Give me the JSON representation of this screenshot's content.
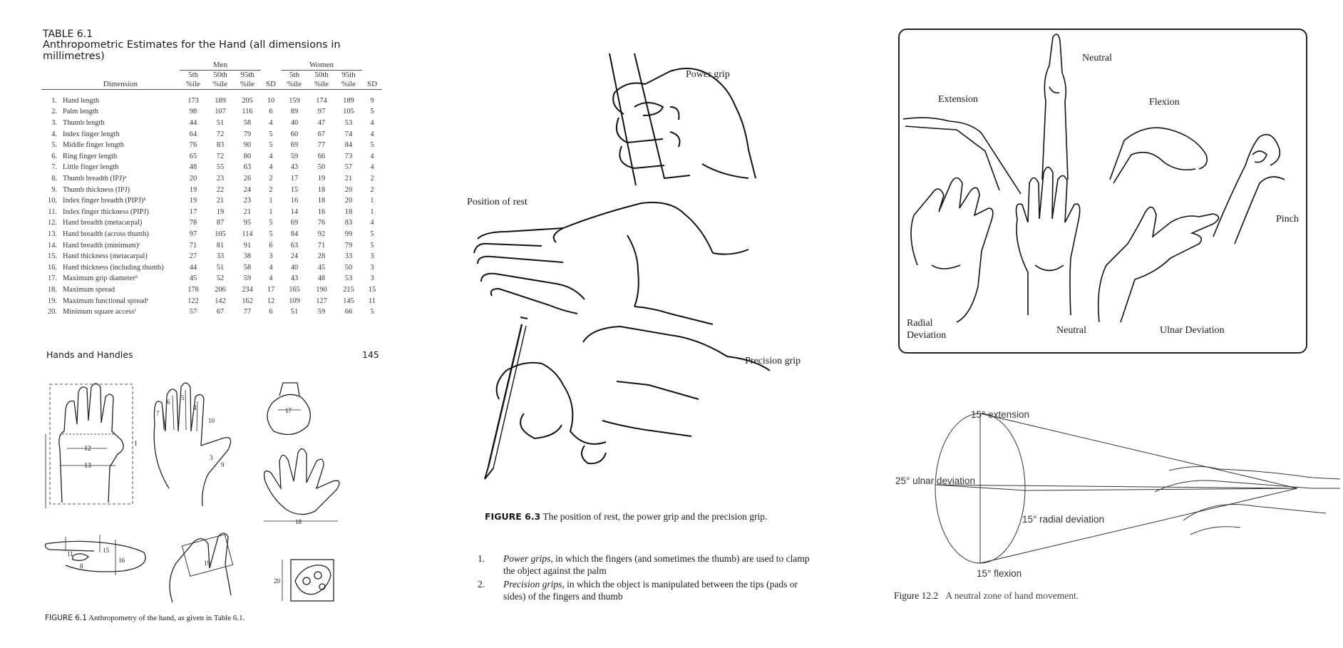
{
  "left_page": {
    "table_label": "TABLE 6.1",
    "table_title": "Anthropometric Estimates for the Hand (all dimensions in millimetres)",
    "group_men": "Men",
    "group_women": "Women",
    "col_dimension": "Dimension",
    "col_headers": [
      {
        "top": "5th",
        "bottom": "%ile"
      },
      {
        "top": "50th",
        "bottom": "%ile"
      },
      {
        "top": "95th",
        "bottom": "%ile"
      },
      {
        "top": "",
        "bottom": "SD"
      },
      {
        "top": "5th",
        "bottom": "%ile"
      },
      {
        "top": "50th",
        "bottom": "%ile"
      },
      {
        "top": "95th",
        "bottom": "%ile"
      },
      {
        "top": "",
        "bottom": "SD"
      }
    ],
    "rows": [
      {
        "idx": "1.",
        "dim": "Hand length",
        "vals": [
          "173",
          "189",
          "205",
          "10",
          "159",
          "174",
          "189",
          "9"
        ]
      },
      {
        "idx": "2.",
        "dim": "Palm length",
        "vals": [
          "98",
          "107",
          "116",
          "6",
          "89",
          "97",
          "105",
          "5"
        ]
      },
      {
        "idx": "3.",
        "dim": "Thumb length",
        "vals": [
          "44",
          "51",
          "58",
          "4",
          "40",
          "47",
          "53",
          "4"
        ]
      },
      {
        "idx": "4.",
        "dim": "Index finger length",
        "vals": [
          "64",
          "72",
          "79",
          "5",
          "60",
          "67",
          "74",
          "4"
        ]
      },
      {
        "idx": "5.",
        "dim": "Middle finger length",
        "vals": [
          "76",
          "83",
          "90",
          "5",
          "69",
          "77",
          "84",
          "5"
        ]
      },
      {
        "idx": "6.",
        "dim": "Ring finger length",
        "vals": [
          "65",
          "72",
          "80",
          "4",
          "59",
          "66",
          "73",
          "4"
        ]
      },
      {
        "idx": "7.",
        "dim": "Little finger length",
        "vals": [
          "48",
          "55",
          "63",
          "4",
          "43",
          "50",
          "57",
          "4"
        ]
      },
      {
        "idx": "8.",
        "dim": "Thumb breadth (IPJ)ᵃ",
        "vals": [
          "20",
          "23",
          "26",
          "2",
          "17",
          "19",
          "21",
          "2"
        ]
      },
      {
        "idx": "9.",
        "dim": "Thumb thickness (IPJ)",
        "vals": [
          "19",
          "22",
          "24",
          "2",
          "15",
          "18",
          "20",
          "2"
        ]
      },
      {
        "idx": "10.",
        "dim": "Index finger breadth (PIPJ)ᵇ",
        "vals": [
          "19",
          "21",
          "23",
          "1",
          "16",
          "18",
          "20",
          "1"
        ]
      },
      {
        "idx": "11.",
        "dim": "Index finger thickness (PIPJ)",
        "vals": [
          "17",
          "19",
          "21",
          "1",
          "14",
          "16",
          "18",
          "1"
        ]
      },
      {
        "idx": "12.",
        "dim": "Hand breadth (metacarpal)",
        "vals": [
          "78",
          "87",
          "95",
          "5",
          "69",
          "76",
          "83",
          "4"
        ]
      },
      {
        "idx": "13.",
        "dim": "Hand breadth (across thumb)",
        "vals": [
          "97",
          "105",
          "114",
          "5",
          "84",
          "92",
          "99",
          "5"
        ]
      },
      {
        "idx": "14.",
        "dim": "Hand breadth (minimum)ᶜ",
        "vals": [
          "71",
          "81",
          "91",
          "6",
          "63",
          "71",
          "79",
          "5"
        ]
      },
      {
        "idx": "15.",
        "dim": "Hand thickness (metacarpal)",
        "vals": [
          "27",
          "33",
          "38",
          "3",
          "24",
          "28",
          "33",
          "3"
        ]
      },
      {
        "idx": "16.",
        "dim": "Hand thickness (including thumb)",
        "vals": [
          "44",
          "51",
          "58",
          "4",
          "40",
          "45",
          "50",
          "3"
        ]
      },
      {
        "idx": "17.",
        "dim": "Maximum grip diameterᵈ",
        "vals": [
          "45",
          "52",
          "59",
          "4",
          "43",
          "48",
          "53",
          "3"
        ]
      },
      {
        "idx": "18.",
        "dim": "Maximum spread",
        "vals": [
          "178",
          "206",
          "234",
          "17",
          "165",
          "190",
          "215",
          "15"
        ]
      },
      {
        "idx": "19.",
        "dim": "Maximum functional spreadᵉ",
        "vals": [
          "122",
          "142",
          "162",
          "12",
          "109",
          "127",
          "145",
          "11"
        ]
      },
      {
        "idx": "20.",
        "dim": "Minimum square accessᶠ",
        "vals": [
          "57",
          "67",
          "77",
          "6",
          "51",
          "59",
          "66",
          "5"
        ]
      }
    ],
    "running_head": "Hands and Handles",
    "page_number": "145",
    "fig61_numbers": [
      "1",
      "2",
      "3",
      "4",
      "5",
      "6",
      "7",
      "8",
      "9",
      "10",
      "11",
      "12",
      "13",
      "15",
      "16",
      "17",
      "18",
      "19",
      "20"
    ],
    "fig61_caption_label": "FIGURE 6.1",
    "fig61_caption_text": "Anthropometry of the hand, as given in Table 6.1."
  },
  "middle_page": {
    "label_power": "Power grip",
    "label_rest": "Position of rest",
    "label_precision": "Precision grip",
    "caption_label": "FIGURE 6.3",
    "caption_text": "The position of rest, the power grip and the precision grip.",
    "items": [
      {
        "n": "1.",
        "term": "Power grips",
        "text": ", in which the fingers (and sometimes the thumb) are used to clamp the object against the palm"
      },
      {
        "n": "2.",
        "term": "Precision grips",
        "text": ", in which the object is manipulated between the tips (pads or sides) of the fingers and thumb"
      }
    ]
  },
  "right_page": {
    "labels": {
      "neutral_top": "Neutral",
      "extension": "Extension",
      "flexion": "Flexion",
      "pinch": "Pinch",
      "radial": "Radial\nDeviation",
      "neutral_bottom": "Neutral",
      "ulnar": "Ulnar Deviation"
    },
    "fig122_labels": {
      "extension": "15° extension",
      "ulnar": "25° ulnar deviation",
      "radial": "15° radial deviation",
      "flexion": "15° flexion"
    },
    "caption_label": "Figure 12.2",
    "caption_text": "A neutral zone of hand movement."
  }
}
